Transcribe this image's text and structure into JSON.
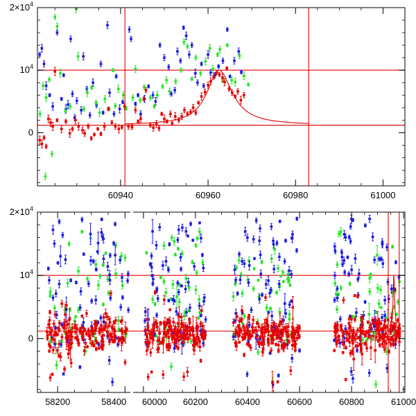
{
  "figure_title": "",
  "chart_data": [
    {
      "type": "scatter",
      "panel": "top",
      "title": "",
      "xlabel": "",
      "ylabel": "",
      "xlim": [
        60921,
        61005
      ],
      "ylim": [
        -8500,
        20000
      ],
      "x_ticks": [
        60940,
        60960,
        60980,
        61000
      ],
      "x_tick_labels": [
        "60940",
        "60960",
        "60980",
        "61000"
      ],
      "y_ticks": [
        0,
        10000,
        20000
      ],
      "y_tick_labels": [
        {
          "value": 0,
          "base": "0",
          "exp": ""
        },
        {
          "value": 10000,
          "base": "10",
          "exp": "4"
        },
        {
          "value": 20000,
          "base": "2×10",
          "exp": "4"
        }
      ],
      "reference_lines": {
        "horizontal": [
          1200,
          10000
        ],
        "vertical": [
          60941,
          60983
        ]
      },
      "model_curve": {
        "baseline": 1200,
        "peak_x": 60962.5,
        "peak_y": 10000,
        "rise_width": 3.8,
        "decay_width": 4.2,
        "x_start": 60941,
        "x_end": 60983
      },
      "series": [
        {
          "name": "blue",
          "color": "#1a1ae6",
          "points": [
            [
              60921.5,
              12500
            ],
            [
              60922,
              13500
            ],
            [
              60922.5,
              11000
            ],
            [
              60923,
              7500
            ],
            [
              60923.8,
              6000
            ],
            [
              60924.5,
              4200
            ],
            [
              60925.5,
              16000
            ],
            [
              60926.5,
              5400
            ],
            [
              60927,
              9200
            ],
            [
              60927.5,
              3800
            ],
            [
              60928,
              4500
            ],
            [
              60928.6,
              15000
            ],
            [
              60929,
              6200
            ],
            [
              60929.5,
              2400
            ],
            [
              60930,
              5100
            ],
            [
              60931,
              3600
            ],
            [
              60931.5,
              12200
            ],
            [
              60932.3,
              7000
            ],
            [
              60933,
              2800
            ],
            [
              60933.7,
              8000
            ],
            [
              60934.5,
              4400
            ],
            [
              60935.5,
              11000
            ],
            [
              60936,
              3200
            ],
            [
              60937,
              17200
            ],
            [
              60937.5,
              6400
            ],
            [
              60938.5,
              3000
            ],
            [
              60939,
              9000
            ],
            [
              60939.8,
              3800
            ],
            [
              60940.5,
              4900
            ],
            [
              60942,
              16500
            ],
            [
              60942.4,
              15000
            ],
            [
              60943.4,
              4600
            ],
            [
              60944,
              6000
            ],
            [
              60944.6,
              3000
            ],
            [
              60945.5,
              5400
            ],
            [
              60946.4,
              7400
            ],
            [
              60947.4,
              6000
            ],
            [
              60948,
              5000
            ],
            [
              60949,
              14000
            ],
            [
              60950,
              12000
            ],
            [
              60951,
              10500
            ],
            [
              60951.6,
              6200
            ],
            [
              60952.4,
              6800
            ],
            [
              60953,
              13000
            ],
            [
              60953.7,
              11500
            ],
            [
              60954.4,
              16800
            ],
            [
              60955,
              15500
            ],
            [
              60955.7,
              12500
            ],
            [
              60956.3,
              14000
            ],
            [
              60957.1,
              9500
            ],
            [
              60957.6,
              8000
            ],
            [
              60958.5,
              11000
            ],
            [
              60959,
              7500
            ],
            [
              60960,
              12500
            ],
            [
              60960.6,
              9600
            ],
            [
              60961.6,
              9200
            ],
            [
              60962.4,
              10600
            ],
            [
              60963.4,
              11500
            ],
            [
              60964.4,
              16500
            ],
            [
              60965,
              9000
            ],
            [
              60966,
              11500
            ],
            [
              60967,
              13000
            ],
            [
              60967.6,
              9700
            ]
          ]
        },
        {
          "name": "green",
          "color": "#22e622",
          "points": [
            [
              60921.6,
              3000
            ],
            [
              60922.3,
              7500
            ],
            [
              60923,
              5600
            ],
            [
              60923.7,
              8500
            ],
            [
              60925,
              18500
            ],
            [
              60925.5,
              17000
            ],
            [
              60926.2,
              9500
            ],
            [
              60927.4,
              3500
            ],
            [
              60928.5,
              4200
            ],
            [
              60929.8,
              19800
            ],
            [
              60930.3,
              12200
            ],
            [
              60931.6,
              3800
            ],
            [
              60932.4,
              6400
            ],
            [
              60933.4,
              7200
            ],
            [
              60934.4,
              4800
            ],
            [
              60935.2,
              3200
            ],
            [
              60936.4,
              5400
            ],
            [
              60937.4,
              3800
            ],
            [
              60938.3,
              10000
            ],
            [
              60938.8,
              4300
            ],
            [
              60939.5,
              7000
            ],
            [
              60940.6,
              6000
            ],
            [
              60941.3,
              3900
            ],
            [
              60942.8,
              5600
            ],
            [
              60943.4,
              10200
            ],
            [
              60944.5,
              5200
            ],
            [
              60945.4,
              7300
            ],
            [
              60946.8,
              5600
            ],
            [
              60947.7,
              4200
            ],
            [
              60948.4,
              6000
            ],
            [
              60949.6,
              7400
            ],
            [
              60950.5,
              8400
            ],
            [
              60951.2,
              6600
            ],
            [
              60952.6,
              8200
            ],
            [
              60953.8,
              10000
            ],
            [
              60954.5,
              14500
            ],
            [
              60955.3,
              13800
            ],
            [
              60956.3,
              8600
            ],
            [
              60957.2,
              12000
            ],
            [
              60958.3,
              9500
            ],
            [
              60959.4,
              11400
            ],
            [
              60960.4,
              13500
            ],
            [
              60961.1,
              10200
            ],
            [
              60962.2,
              12500
            ],
            [
              60962.7,
              13300
            ],
            [
              60963.4,
              8500
            ],
            [
              60964.4,
              14000
            ],
            [
              60965.4,
              8400
            ],
            [
              60966.2,
              8100
            ],
            [
              60967.2,
              12300
            ],
            [
              60968.2,
              9100
            ],
            [
              60969.2,
              7700
            ],
            [
              60922.8,
              -7000
            ],
            [
              60924.3,
              -3400
            ]
          ]
        },
        {
          "name": "red",
          "color": "#e60000",
          "points": [
            [
              60921.5,
              -1200
            ],
            [
              60922,
              -1800
            ],
            [
              60922.5,
              -800
            ],
            [
              60923,
              -2200
            ],
            [
              60923.5,
              2200
            ],
            [
              60924,
              1600
            ],
            [
              60924.5,
              1000
            ],
            [
              60925,
              9800
            ],
            [
              60925.5,
              2000
            ],
            [
              60926.5,
              600
            ],
            [
              60927.5,
              1800
            ],
            [
              60928.4,
              -100
            ],
            [
              60929,
              600
            ],
            [
              60929.7,
              2000
            ],
            [
              60930.4,
              1000
            ],
            [
              60931.3,
              400
            ],
            [
              60931.8,
              -100
            ],
            [
              60932.6,
              1000
            ],
            [
              60933.3,
              -900
            ],
            [
              60934,
              -300
            ],
            [
              60934.8,
              600
            ],
            [
              60935.5,
              -200
            ],
            [
              60936.3,
              1000
            ],
            [
              60937.2,
              3800
            ],
            [
              60938,
              1600
            ],
            [
              60938.8,
              1000
            ],
            [
              60939.6,
              600
            ],
            [
              60940.3,
              900
            ],
            [
              60940.9,
              4200
            ],
            [
              60941.8,
              1000
            ],
            [
              60942.6,
              900
            ],
            [
              60943.4,
              3600
            ],
            [
              60944,
              1800
            ],
            [
              60944.6,
              2200
            ],
            [
              60945.3,
              5400
            ],
            [
              60945.8,
              6800
            ],
            [
              60946.8,
              1200
            ],
            [
              60947.5,
              800
            ],
            [
              60948.2,
              1400
            ],
            [
              60948.8,
              700
            ],
            [
              60949.4,
              3000
            ],
            [
              60950,
              2200
            ],
            [
              60950.6,
              1800
            ],
            [
              60951.4,
              3000
            ],
            [
              60951.8,
              1500
            ],
            [
              60952.5,
              2600
            ],
            [
              60953.3,
              2000
            ],
            [
              60954,
              2600
            ],
            [
              60954.6,
              3600
            ],
            [
              60955.3,
              3000
            ],
            [
              60956,
              3300
            ],
            [
              60956.6,
              4000
            ],
            [
              60957.2,
              3200
            ],
            [
              60957.8,
              4800
            ],
            [
              60958.5,
              5800
            ],
            [
              60959.3,
              6500
            ],
            [
              60960,
              7600
            ],
            [
              60960.6,
              8200
            ],
            [
              60961.3,
              9000
            ],
            [
              60962,
              9600
            ],
            [
              60962.6,
              9300
            ],
            [
              60963.3,
              8800
            ],
            [
              60963.8,
              8100
            ],
            [
              60964.3,
              10300
            ],
            [
              60964.8,
              7000
            ],
            [
              60965.5,
              6400
            ],
            [
              60966.2,
              5800
            ],
            [
              60966.8,
              6600
            ],
            [
              60967.5,
              5200
            ],
            [
              60968.2,
              6000
            ]
          ]
        }
      ]
    },
    {
      "type": "scatter",
      "panel": "bottom",
      "title": "",
      "xlabel": "",
      "ylabel": "",
      "xlim": [
        58140,
        61005
      ],
      "ylim": [
        -8500,
        20000
      ],
      "x_ticks": [
        58200,
        58400,
        60000,
        60200,
        60400,
        60600,
        60800,
        61000
      ],
      "x_tick_labels": [
        "58200",
        "58400",
        "60000",
        "60200",
        "60400",
        "60600",
        "60800",
        "61000"
      ],
      "x_break": {
        "left_segment": [
          58140,
          58420
        ],
        "right_segment": [
          59955,
          61005
        ],
        "note": "time axis is broken between seasons"
      },
      "y_ticks": [
        0,
        10000,
        20000
      ],
      "y_tick_labels": [
        {
          "value": 0,
          "base": "0",
          "exp": ""
        },
        {
          "value": 10000,
          "base": "10",
          "exp": "4"
        },
        {
          "value": 20000,
          "base": "2×10",
          "exp": "4"
        }
      ],
      "reference_lines": {
        "horizontal": [
          1200,
          10000
        ],
        "vertical": [
          60941,
          60983
        ]
      },
      "observing_seasons": [
        [
          58165,
          58410
        ],
        [
          60005,
          60240
        ],
        [
          60345,
          60600
        ],
        [
          60730,
          60985
        ]
      ],
      "series_summary": [
        {
          "name": "red",
          "color": "#e60000",
          "typical_range": [
            -3000,
            5000
          ],
          "approx_points_per_season": 170
        },
        {
          "name": "green",
          "color": "#22e622",
          "typical_range": [
            -1000,
            17000
          ],
          "approx_points_per_season": 45
        },
        {
          "name": "blue",
          "color": "#1a1ae6",
          "typical_range": [
            -1000,
            19000
          ],
          "approx_points_per_season": 75
        }
      ]
    }
  ]
}
